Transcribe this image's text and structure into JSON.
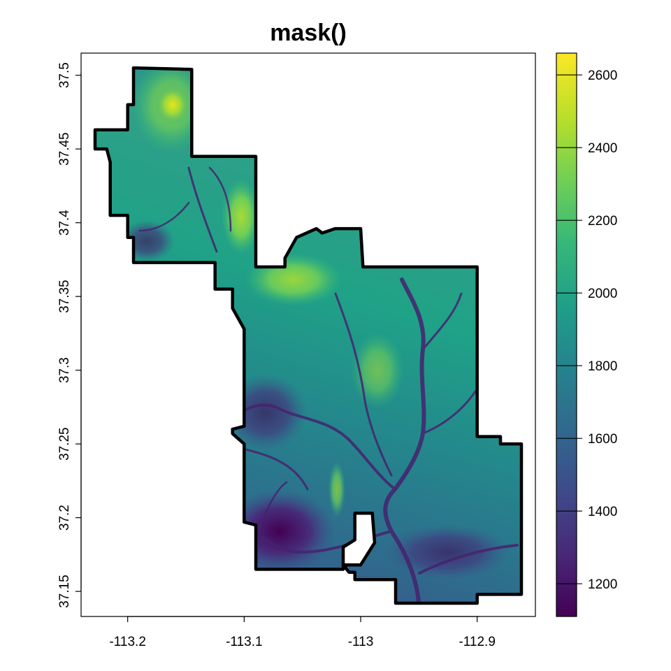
{
  "title": "mask()",
  "map": {
    "x_axis": {
      "ticks": [
        {
          "value": -113.2,
          "label": "-113.2"
        },
        {
          "value": -113.1,
          "label": "-113.1"
        },
        {
          "value": -113.0,
          "label": "-113"
        },
        {
          "value": -112.9,
          "label": "-112.9"
        }
      ],
      "range": [
        -113.24,
        -112.85
      ]
    },
    "y_axis": {
      "ticks": [
        {
          "value": 37.15,
          "label": "37.15"
        },
        {
          "value": 37.2,
          "label": "37.2"
        },
        {
          "value": 37.25,
          "label": "37.25"
        },
        {
          "value": 37.3,
          "label": "37.3"
        },
        {
          "value": 37.35,
          "label": "37.35"
        },
        {
          "value": 37.4,
          "label": "37.4"
        },
        {
          "value": 37.45,
          "label": "37.45"
        },
        {
          "value": 37.5,
          "label": "37.5"
        }
      ],
      "range": [
        37.133,
        37.515
      ]
    },
    "legend": {
      "position": "right",
      "palette": "viridis",
      "range": [
        1110,
        2660
      ],
      "ticks": [
        {
          "value": 1200,
          "label": "1200"
        },
        {
          "value": 1400,
          "label": "1400"
        },
        {
          "value": 1600,
          "label": "1600"
        },
        {
          "value": 1800,
          "label": "1800"
        },
        {
          "value": 2000,
          "label": "2000"
        },
        {
          "value": 2200,
          "label": "2200"
        },
        {
          "value": 2400,
          "label": "2400"
        },
        {
          "value": 2600,
          "label": "2600"
        }
      ]
    },
    "colors": {
      "viridis_stops": [
        "#440154",
        "#482878",
        "#3e4a89",
        "#31688e",
        "#26828e",
        "#1f9e89",
        "#35b779",
        "#6ece58",
        "#b5de2b",
        "#fde725"
      ],
      "boundary": "#000000"
    },
    "boundary_polygon_lonlat": [
      [
        -113.195,
        37.505
      ],
      [
        -113.145,
        37.504
      ],
      [
        -113.145,
        37.445
      ],
      [
        -113.09,
        37.445
      ],
      [
        -113.09,
        37.37
      ],
      [
        -113.065,
        37.37
      ],
      [
        -113.065,
        37.376
      ],
      [
        -113.055,
        37.39
      ],
      [
        -113.038,
        37.396
      ],
      [
        -113.033,
        37.393
      ],
      [
        -113.022,
        37.396
      ],
      [
        -113.0,
        37.396
      ],
      [
        -112.998,
        37.37
      ],
      [
        -112.9,
        37.37
      ],
      [
        -112.9,
        37.255
      ],
      [
        -112.88,
        37.255
      ],
      [
        -112.88,
        37.25
      ],
      [
        -112.862,
        37.25
      ],
      [
        -112.862,
        37.148
      ],
      [
        -112.9,
        37.148
      ],
      [
        -112.9,
        37.142
      ],
      [
        -112.97,
        37.142
      ],
      [
        -112.97,
        37.158
      ],
      [
        -113.005,
        37.158
      ],
      [
        -113.005,
        37.163
      ],
      [
        -113.01,
        37.163
      ],
      [
        -113.015,
        37.168
      ],
      [
        -113.0,
        37.168
      ],
      [
        -112.988,
        37.183
      ],
      [
        -112.99,
        37.203
      ],
      [
        -113.005,
        37.203
      ],
      [
        -113.005,
        37.185
      ],
      [
        -113.015,
        37.18
      ],
      [
        -113.015,
        37.165
      ],
      [
        -113.09,
        37.165
      ],
      [
        -113.09,
        37.195
      ],
      [
        -113.1,
        37.197
      ],
      [
        -113.1,
        37.25
      ],
      [
        -113.11,
        37.257
      ],
      [
        -113.11,
        37.26
      ],
      [
        -113.1,
        37.262
      ],
      [
        -113.1,
        37.328
      ],
      [
        -113.11,
        37.342
      ],
      [
        -113.11,
        37.355
      ],
      [
        -113.125,
        37.355
      ],
      [
        -113.125,
        37.373
      ],
      [
        -113.195,
        37.373
      ],
      [
        -113.195,
        37.39
      ],
      [
        -113.2,
        37.39
      ],
      [
        -113.2,
        37.405
      ],
      [
        -113.215,
        37.405
      ],
      [
        -113.215,
        37.441
      ],
      [
        -113.218,
        37.45
      ],
      [
        -113.228,
        37.45
      ],
      [
        -113.228,
        37.463
      ],
      [
        -113.2,
        37.463
      ],
      [
        -113.2,
        37.48
      ],
      [
        -113.195,
        37.48
      ]
    ]
  }
}
